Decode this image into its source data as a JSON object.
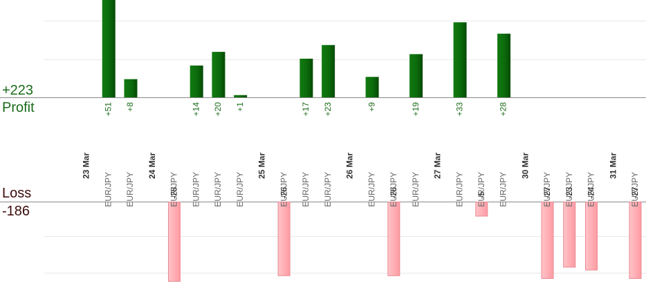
{
  "summary": {
    "profit_total": "+223",
    "profit_label": "Profit",
    "loss_label": "Loss",
    "loss_total": "-186"
  },
  "colors": {
    "profit_bar": "#0b6b0b",
    "loss_bar": "#ffb3b8",
    "loss_bar_edge": "#e88a92",
    "profit_label": "#1a6b1a",
    "date_label": "#333333",
    "pair_label": "#666666",
    "loss_label": "#222222"
  },
  "chart_data": {
    "type": "bar",
    "title": "",
    "xlabel": "",
    "ylabel": "",
    "profit_scale_max": 51,
    "loss_scale_max": 28,
    "grid": true,
    "items": [
      {
        "kind": "date",
        "label": "23 Mar"
      },
      {
        "kind": "trade",
        "pair": "EUR/JPY",
        "value": 51,
        "label": "+51"
      },
      {
        "kind": "trade",
        "pair": "EUR/JPY",
        "value": 8,
        "label": "+8"
      },
      {
        "kind": "date",
        "label": "24 Mar"
      },
      {
        "kind": "trade",
        "pair": "EUR/JPY",
        "value": -28,
        "label": "-28"
      },
      {
        "kind": "trade",
        "pair": "EUR/JPY",
        "value": 14,
        "label": "+14"
      },
      {
        "kind": "trade",
        "pair": "EUR/JPY",
        "value": 20,
        "label": "+20"
      },
      {
        "kind": "trade",
        "pair": "EUR/JPY",
        "value": 1,
        "label": "+1"
      },
      {
        "kind": "date",
        "label": "25 Mar"
      },
      {
        "kind": "trade",
        "pair": "EUR/JPY",
        "value": -26,
        "label": "-26"
      },
      {
        "kind": "trade",
        "pair": "EUR/JPY",
        "value": 17,
        "label": "+17"
      },
      {
        "kind": "trade",
        "pair": "EUR/JPY",
        "value": 23,
        "label": "+23"
      },
      {
        "kind": "date",
        "label": "26 Mar"
      },
      {
        "kind": "trade",
        "pair": "EUR/JPY",
        "value": 9,
        "label": "+9"
      },
      {
        "kind": "trade",
        "pair": "EUR/JPY",
        "value": -26,
        "label": "-26"
      },
      {
        "kind": "trade",
        "pair": "EUR/JPY",
        "value": 19,
        "label": "+19"
      },
      {
        "kind": "date",
        "label": "27 Mar"
      },
      {
        "kind": "trade",
        "pair": "EUR/JPY",
        "value": 33,
        "label": "+33"
      },
      {
        "kind": "trade",
        "pair": "EUR/JPY",
        "value": -5,
        "label": "-5"
      },
      {
        "kind": "trade",
        "pair": "EUR/JPY",
        "value": 28,
        "label": "+28"
      },
      {
        "kind": "date",
        "label": "30 Mar"
      },
      {
        "kind": "trade",
        "pair": "EUR/JPY",
        "value": -27,
        "label": "-27"
      },
      {
        "kind": "trade",
        "pair": "EUR/JPY",
        "value": -23,
        "label": "-23"
      },
      {
        "kind": "trade",
        "pair": "EUR/JPY",
        "value": -24,
        "label": "-24"
      },
      {
        "kind": "date",
        "label": "31 Mar"
      },
      {
        "kind": "trade",
        "pair": "EUR/JPY",
        "value": -27,
        "label": "-27"
      }
    ]
  }
}
